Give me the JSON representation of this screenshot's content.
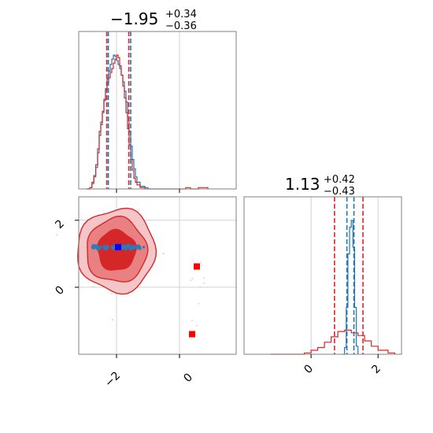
{
  "chart_data": {
    "type": "corner",
    "parameters": [
      {
        "median": -1.95,
        "plus": 0.34,
        "minus": 0.36,
        "title_main": "−1.95",
        "title_plus": "+0.34",
        "title_minus": "−0.36",
        "ticks": [
          -2,
          0
        ],
        "tick_labels": [
          "−2",
          "0"
        ],
        "range": [
          -3.2,
          1.8
        ]
      },
      {
        "median": 1.13,
        "plus": 0.42,
        "minus": 0.43,
        "title_main": "1.13",
        "title_plus": "+0.42",
        "title_minus": "−0.43",
        "ticks": [
          0,
          2
        ],
        "tick_labels": [
          "0",
          "2"
        ],
        "range": [
          -2.0,
          2.7
        ]
      }
    ],
    "series": [
      {
        "color": "#d62728",
        "quantiles_p1": [
          -2.31,
          -1.61
        ],
        "quantiles_p2": [
          0.7,
          1.55
        ],
        "marginal_p1": [
          [
            -2.95,
            0
          ],
          [
            -2.85,
            0.01
          ],
          [
            -2.78,
            0.05
          ],
          [
            -2.72,
            0.1
          ],
          [
            -2.66,
            0.18
          ],
          [
            -2.6,
            0.3
          ],
          [
            -2.55,
            0.43
          ],
          [
            -2.5,
            0.5
          ],
          [
            -2.45,
            0.58
          ],
          [
            -2.4,
            0.67
          ],
          [
            -2.35,
            0.74
          ],
          [
            -2.3,
            0.79
          ],
          [
            -2.25,
            0.83
          ],
          [
            -2.2,
            0.87
          ],
          [
            -2.15,
            0.9
          ],
          [
            -2.1,
            0.94
          ],
          [
            -2.05,
            0.97
          ],
          [
            -2.0,
            1.0
          ],
          [
            -1.95,
            0.98
          ],
          [
            -1.9,
            0.92
          ],
          [
            -1.85,
            0.85
          ],
          [
            -1.8,
            0.77
          ],
          [
            -1.75,
            0.68
          ],
          [
            -1.7,
            0.57
          ],
          [
            -1.65,
            0.45
          ],
          [
            -1.6,
            0.33
          ],
          [
            -1.55,
            0.22
          ],
          [
            -1.5,
            0.14
          ],
          [
            -1.45,
            0.08
          ],
          [
            -1.4,
            0.05
          ],
          [
            -1.35,
            0.03
          ],
          [
            -1.25,
            0.01
          ],
          [
            -1.1,
            0
          ],
          [
            0.2,
            0.01
          ],
          [
            0.35,
            0
          ],
          [
            0.6,
            0.01
          ],
          [
            0.9,
            0
          ]
        ],
        "marginal_p2": [
          [
            -1.2,
            0.0
          ],
          [
            -0.2,
            0.01
          ],
          [
            0.0,
            0.03
          ],
          [
            0.2,
            0.05
          ],
          [
            0.4,
            0.09
          ],
          [
            0.6,
            0.13
          ],
          [
            0.8,
            0.17
          ],
          [
            1.0,
            0.18
          ],
          [
            1.2,
            0.16
          ],
          [
            1.4,
            0.14
          ],
          [
            1.6,
            0.1
          ],
          [
            1.8,
            0.06
          ],
          [
            2.0,
            0.03
          ],
          [
            2.3,
            0.01
          ],
          [
            2.5,
            0
          ]
        ],
        "outlier_points": [
          [
            0.55,
            0.62
          ],
          [
            0.4,
            -1.4
          ]
        ]
      },
      {
        "color": "#1f77b4",
        "quantiles_p1": [
          -2.26,
          -1.55
        ],
        "quantiles_p2": [
          1.07,
          1.28
        ],
        "marginal_p1": [
          [
            -2.95,
            0
          ],
          [
            -2.85,
            0.01
          ],
          [
            -2.78,
            0.04
          ],
          [
            -2.72,
            0.09
          ],
          [
            -2.66,
            0.16
          ],
          [
            -2.6,
            0.27
          ],
          [
            -2.55,
            0.4
          ],
          [
            -2.5,
            0.48
          ],
          [
            -2.45,
            0.57
          ],
          [
            -2.4,
            0.66
          ],
          [
            -2.35,
            0.75
          ],
          [
            -2.3,
            0.82
          ],
          [
            -2.25,
            0.88
          ],
          [
            -2.2,
            0.93
          ],
          [
            -2.15,
            0.97
          ],
          [
            -2.1,
            1.0
          ],
          [
            -2.05,
            0.99
          ],
          [
            -2.0,
            0.96
          ],
          [
            -1.95,
            0.93
          ],
          [
            -1.9,
            0.9
          ],
          [
            -1.85,
            0.85
          ],
          [
            -1.8,
            0.8
          ],
          [
            -1.75,
            0.73
          ],
          [
            -1.7,
            0.65
          ],
          [
            -1.65,
            0.54
          ],
          [
            -1.6,
            0.43
          ],
          [
            -1.55,
            0.32
          ],
          [
            -1.5,
            0.22
          ],
          [
            -1.45,
            0.15
          ],
          [
            -1.4,
            0.09
          ],
          [
            -1.35,
            0.05
          ],
          [
            -1.25,
            0.02
          ],
          [
            -1.1,
            0.01
          ],
          [
            -1.0,
            0
          ]
        ],
        "marginal_p2": [
          [
            0.95,
            0
          ],
          [
            1.0,
            0.05
          ],
          [
            1.05,
            0.35
          ],
          [
            1.1,
            0.75
          ],
          [
            1.15,
            0.95
          ],
          [
            1.2,
            1.0
          ],
          [
            1.25,
            0.8
          ],
          [
            1.3,
            0.35
          ],
          [
            1.35,
            0.06
          ],
          [
            1.4,
            0
          ]
        ],
        "center_point": [
          -1.95,
          1.2
        ]
      }
    ],
    "contours": {
      "center": [
        -2.0,
        1.0
      ],
      "levels_sigma": [
        0.3,
        0.48,
        0.62
      ],
      "fill_colors": [
        "#d62728",
        "#e98183",
        "#f5c6c7"
      ]
    },
    "grid": true
  }
}
